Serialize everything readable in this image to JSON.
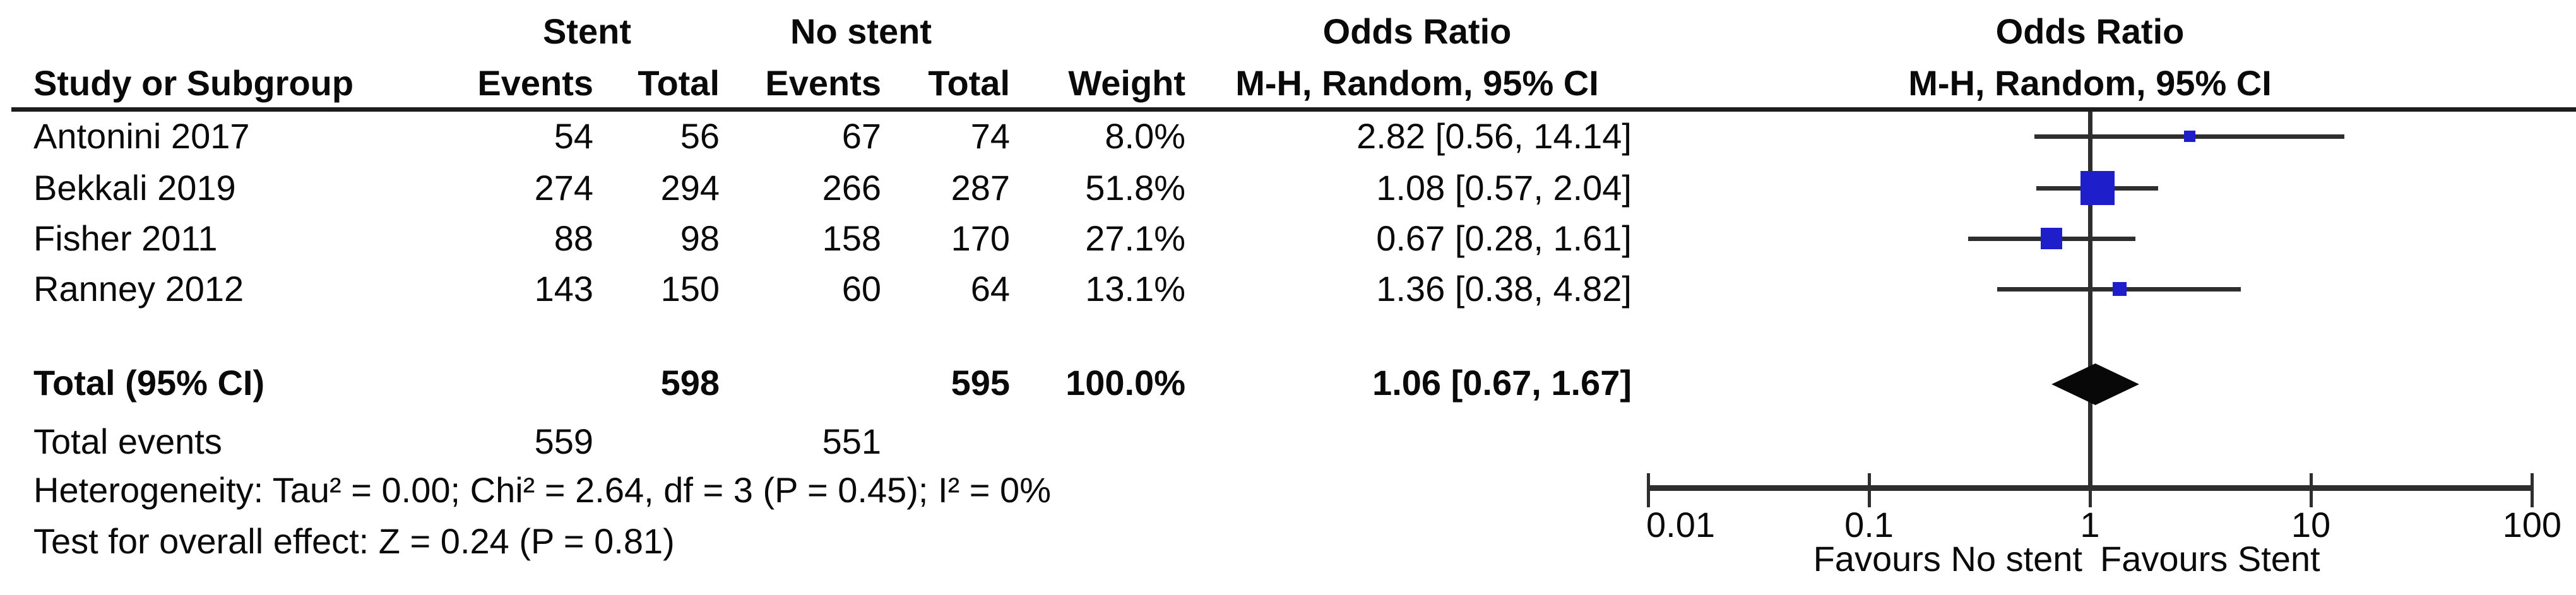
{
  "header": {
    "group1": "Stent",
    "group2": "No stent",
    "study_col": "Study or Subgroup",
    "events_col": "Events",
    "total_col": "Total",
    "weight_col": "Weight",
    "or_line1": "Odds Ratio",
    "or_line2": "M-H, Random, 95% CI",
    "plot_line1": "Odds Ratio",
    "plot_line2": "M-H, Random, 95% CI"
  },
  "studies": [
    {
      "name": "Antonini 2017",
      "stent_events": "54",
      "stent_total": "56",
      "no_stent_events": "67",
      "no_stent_total": "74",
      "weight": "8.0%",
      "weight_pct": 8.0,
      "or_text": "2.82 [0.56, 14.14]",
      "or": 2.82,
      "ci_low": 0.56,
      "ci_high": 14.14
    },
    {
      "name": "Bekkali 2019",
      "stent_events": "274",
      "stent_total": "294",
      "no_stent_events": "266",
      "no_stent_total": "287",
      "weight": "51.8%",
      "weight_pct": 51.8,
      "or_text": "1.08 [0.57, 2.04]",
      "or": 1.08,
      "ci_low": 0.57,
      "ci_high": 2.04
    },
    {
      "name": "Fisher 2011",
      "stent_events": "88",
      "stent_total": "98",
      "no_stent_events": "158",
      "no_stent_total": "170",
      "weight": "27.1%",
      "weight_pct": 27.1,
      "or_text": "0.67 [0.28, 1.61]",
      "or": 0.67,
      "ci_low": 0.28,
      "ci_high": 1.61
    },
    {
      "name": "Ranney 2012",
      "stent_events": "143",
      "stent_total": "150",
      "no_stent_events": "60",
      "no_stent_total": "64",
      "weight": "13.1%",
      "weight_pct": 13.1,
      "or_text": "1.36 [0.38, 4.82]",
      "or": 1.36,
      "ci_low": 0.38,
      "ci_high": 4.82
    }
  ],
  "total": {
    "label": "Total (95% CI)",
    "stent_total": "598",
    "no_stent_total": "595",
    "weight": "100.0%",
    "or_text": "1.06 [0.67, 1.67]",
    "or": 1.06,
    "ci_low": 0.67,
    "ci_high": 1.67
  },
  "total_events": {
    "label": "Total events",
    "stent": "559",
    "no_stent": "551"
  },
  "heterogeneity": "Heterogeneity: Tau² = 0.00; Chi² = 2.64, df = 3 (P = 0.45); I² = 0%",
  "overall_effect": "Test for overall effect: Z = 0.24 (P = 0.81)",
  "axis": {
    "ticks": [
      0.01,
      0.1,
      1,
      10,
      100
    ],
    "tick_labels": [
      "0.01",
      "0.1",
      "1",
      "10",
      "100"
    ],
    "favours_left": "Favours No stent",
    "favours_right": "Favours Stent"
  },
  "colors": {
    "marker_blue": "#1e1ecb",
    "diamond_black": "#080808",
    "line_gray": "#2e2e2e"
  },
  "chart_data": {
    "type": "scatter",
    "chart_kind": "forest-plot-meta-analysis",
    "effect_measure": "Odds Ratio, M-H, Random, 95% CI",
    "x_scale": "log10",
    "x_range": [
      0.01,
      100
    ],
    "x_ticks": [
      0.01,
      0.1,
      1,
      10,
      100
    ],
    "series": [
      {
        "name": "Antonini 2017",
        "or": 2.82,
        "ci": [
          0.56,
          14.14
        ],
        "weight_pct": 8.0
      },
      {
        "name": "Bekkali 2019",
        "or": 1.08,
        "ci": [
          0.57,
          2.04
        ],
        "weight_pct": 51.8
      },
      {
        "name": "Fisher 2011",
        "or": 0.67,
        "ci": [
          0.28,
          1.61
        ],
        "weight_pct": 27.1
      },
      {
        "name": "Ranney 2012",
        "or": 1.36,
        "ci": [
          0.38,
          4.82
        ],
        "weight_pct": 13.1
      }
    ],
    "pooled": {
      "label": "Total (95% CI)",
      "or": 1.06,
      "ci": [
        0.67,
        1.67
      ],
      "weight_pct": 100.0
    },
    "heterogeneity": {
      "tau2": 0.0,
      "chi2": 2.64,
      "df": 3,
      "p": 0.45,
      "i2_pct": 0
    },
    "overall_effect": {
      "z": 0.24,
      "p": 0.81
    },
    "annotations": [
      "Favours No stent",
      "Favours Stent"
    ],
    "grid": false,
    "legend": false
  }
}
